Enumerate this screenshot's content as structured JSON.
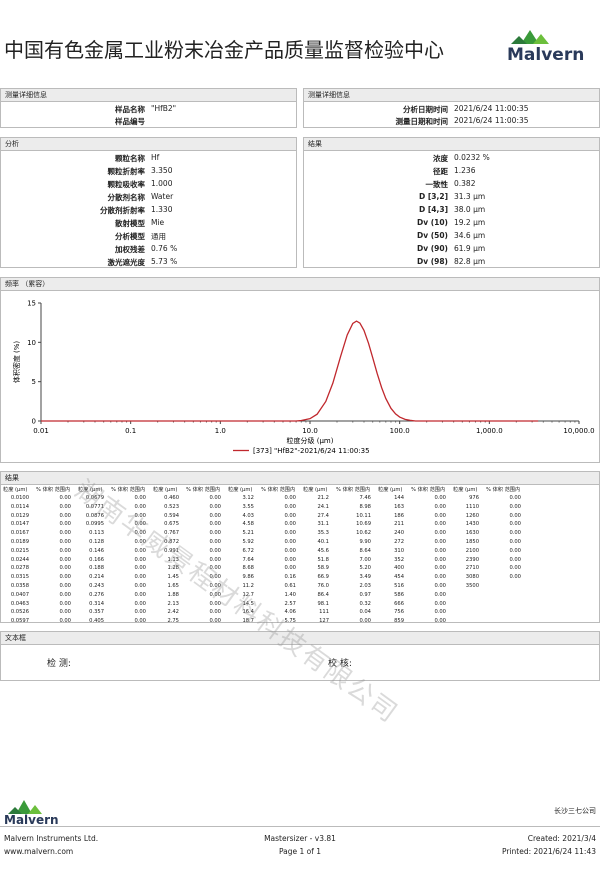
{
  "header": {
    "title": "中国有色金属工业粉末冶金产品质量监督检验中心",
    "logo": "Malvern"
  },
  "measurement": {
    "left_title": "测量详细信息",
    "right_title": "测量详细信息",
    "left": [
      {
        "label": "样品名称",
        "value": "\"HfB2\""
      },
      {
        "label": "样品编号"
      }
    ],
    "right": [
      {
        "label": "分析日期时间",
        "value": "2021/6/24 11:00:35"
      },
      {
        "label": "测量日期和时间",
        "value": "2021/6/24 11:00:35"
      }
    ]
  },
  "analysis": {
    "title": "分析",
    "rows": [
      {
        "label": "颗粒名称",
        "value": "Hf"
      },
      {
        "label": "颗粒折射率",
        "value": "3.350"
      },
      {
        "label": "颗粒吸收率",
        "value": "1.000"
      },
      {
        "label": "分散剂名称",
        "value": "Water"
      },
      {
        "label": "分散剂折射率",
        "value": "1.330"
      },
      {
        "label": "散射模型",
        "value": "Mie"
      },
      {
        "label": "分析模型",
        "value": "通用"
      },
      {
        "label": "加权残差",
        "value": "0.76 %"
      },
      {
        "label": "激光遮光度",
        "value": "5.73 %"
      }
    ]
  },
  "results": {
    "title": "结果",
    "rows": [
      {
        "label": "浓度",
        "value": "0.0232 %"
      },
      {
        "label": "径距",
        "value": "1.236"
      },
      {
        "label": "一致性",
        "value": "0.382"
      },
      {
        "label": "D [3,2]",
        "value": "31.3 μm"
      },
      {
        "label": "D [4,3]",
        "value": "38.0 μm"
      },
      {
        "label": "Dv (10)",
        "value": "19.2 μm"
      },
      {
        "label": "Dv (50)",
        "value": "34.6 μm"
      },
      {
        "label": "Dv (90)",
        "value": "61.9 μm"
      },
      {
        "label": "Dv (98)",
        "value": "82.8 μm"
      }
    ]
  },
  "chart_section": {
    "title": "频率 （累容）"
  },
  "chart_data": {
    "type": "line",
    "x_label": "粒度分级 (μm)",
    "y_label": "体积密度 (%)",
    "log_x": true,
    "xlim": [
      0.01,
      10000
    ],
    "ylim": [
      0,
      15
    ],
    "xticks": [
      {
        "value": 0.01,
        "label": "0.01"
      },
      {
        "value": 0.1,
        "label": "0.1"
      },
      {
        "value": 1,
        "label": "1.0"
      },
      {
        "value": 10,
        "label": "10.0"
      },
      {
        "value": 100,
        "label": "100.0"
      },
      {
        "value": 1000,
        "label": "1,000.0"
      },
      {
        "value": 10000,
        "label": "10,000.0"
      }
    ],
    "yticks": [
      0,
      5,
      10,
      15
    ],
    "x": [
      0.01,
      7,
      8,
      10,
      12,
      15,
      18,
      22,
      26,
      30,
      33,
      36,
      40,
      45,
      50,
      56,
      63,
      70,
      80,
      90,
      100,
      115,
      130,
      150,
      3500
    ],
    "series": [
      {
        "name": "[373] \"HfB2\"-2021/6/24 11:00:35",
        "color": "#c0282d",
        "values": [
          0,
          0,
          0.06,
          0.3,
          0.86,
          2.48,
          4.83,
          8.25,
          10.94,
          12.4,
          12.7,
          12.45,
          11.52,
          9.86,
          8.06,
          6.08,
          4.23,
          2.87,
          1.61,
          0.9,
          0.5,
          0.21,
          0.09,
          0,
          0
        ]
      }
    ]
  },
  "table": {
    "title": "结果",
    "size_header": "粒度 (μm)",
    "vol_header": "% 体积 范围内",
    "groups": [
      [
        [
          "0.0100",
          "0.00"
        ],
        [
          "0.0114",
          "0.00"
        ],
        [
          "0.0129",
          "0.00"
        ],
        [
          "0.0147",
          "0.00"
        ],
        [
          "0.0167",
          "0.00"
        ],
        [
          "0.0189",
          "0.00"
        ],
        [
          "0.0215",
          "0.00"
        ],
        [
          "0.0244",
          "0.00"
        ],
        [
          "0.0278",
          "0.00"
        ],
        [
          "0.0315",
          "0.00"
        ],
        [
          "0.0358",
          "0.00"
        ],
        [
          "0.0407",
          "0.00"
        ],
        [
          "0.0463",
          "0.00"
        ],
        [
          "0.0526",
          "0.00"
        ],
        [
          "0.0597",
          "0.00"
        ]
      ],
      [
        [
          "0.0679",
          "0.00"
        ],
        [
          "0.0771",
          "0.00"
        ],
        [
          "0.0876",
          "0.00"
        ],
        [
          "0.0995",
          "0.00"
        ],
        [
          "0.113",
          "0.00"
        ],
        [
          "0.128",
          "0.00"
        ],
        [
          "0.146",
          "0.00"
        ],
        [
          "0.166",
          "0.00"
        ],
        [
          "0.188",
          "0.00"
        ],
        [
          "0.214",
          "0.00"
        ],
        [
          "0.243",
          "0.00"
        ],
        [
          "0.276",
          "0.00"
        ],
        [
          "0.314",
          "0.00"
        ],
        [
          "0.357",
          "0.00"
        ],
        [
          "0.405",
          "0.00"
        ]
      ],
      [
        [
          "0.460",
          "0.00"
        ],
        [
          "0.523",
          "0.00"
        ],
        [
          "0.594",
          "0.00"
        ],
        [
          "0.675",
          "0.00"
        ],
        [
          "0.767",
          "0.00"
        ],
        [
          "0.872",
          "0.00"
        ],
        [
          "0.991",
          "0.00"
        ],
        [
          "1.13",
          "0.00"
        ],
        [
          "1.28",
          "0.00"
        ],
        [
          "1.45",
          "0.00"
        ],
        [
          "1.65",
          "0.00"
        ],
        [
          "1.88",
          "0.00"
        ],
        [
          "2.13",
          "0.00"
        ],
        [
          "2.42",
          "0.00"
        ],
        [
          "2.75",
          "0.00"
        ]
      ],
      [
        [
          "3.12",
          "0.00"
        ],
        [
          "3.55",
          "0.00"
        ],
        [
          "4.03",
          "0.00"
        ],
        [
          "4.58",
          "0.00"
        ],
        [
          "5.21",
          "0.00"
        ],
        [
          "5.92",
          "0.00"
        ],
        [
          "6.72",
          "0.00"
        ],
        [
          "7.64",
          "0.00"
        ],
        [
          "8.68",
          "0.00"
        ],
        [
          "9.86",
          "0.16"
        ],
        [
          "11.2",
          "0.61"
        ],
        [
          "12.7",
          "1.40"
        ],
        [
          "14.5",
          "2.57"
        ],
        [
          "16.4",
          "4.06"
        ],
        [
          "18.7",
          "5.75"
        ]
      ],
      [
        [
          "21.2",
          "7.46"
        ],
        [
          "24.1",
          "8.98"
        ],
        [
          "27.4",
          "10.11"
        ],
        [
          "31.1",
          "10.69"
        ],
        [
          "35.3",
          "10.62"
        ],
        [
          "40.1",
          "9.90"
        ],
        [
          "45.6",
          "8.64"
        ],
        [
          "51.8",
          "7.00"
        ],
        [
          "58.9",
          "5.20"
        ],
        [
          "66.9",
          "3.49"
        ],
        [
          "76.0",
          "2.03"
        ],
        [
          "86.4",
          "0.97"
        ],
        [
          "98.1",
          "0.32"
        ],
        [
          "111",
          "0.04"
        ],
        [
          "127",
          "0.00"
        ]
      ],
      [
        [
          "144",
          "0.00"
        ],
        [
          "163",
          "0.00"
        ],
        [
          "186",
          "0.00"
        ],
        [
          "211",
          "0.00"
        ],
        [
          "240",
          "0.00"
        ],
        [
          "272",
          "0.00"
        ],
        [
          "310",
          "0.00"
        ],
        [
          "352",
          "0.00"
        ],
        [
          "400",
          "0.00"
        ],
        [
          "454",
          "0.00"
        ],
        [
          "516",
          "0.00"
        ],
        [
          "586",
          "0.00"
        ],
        [
          "666",
          "0.00"
        ],
        [
          "756",
          "0.00"
        ],
        [
          "859",
          "0.00"
        ]
      ],
      [
        [
          "976",
          "0.00"
        ],
        [
          "1110",
          "0.00"
        ],
        [
          "1260",
          "0.00"
        ],
        [
          "1430",
          "0.00"
        ],
        [
          "1630",
          "0.00"
        ],
        [
          "1850",
          "0.00"
        ],
        [
          "2100",
          "0.00"
        ],
        [
          "2390",
          "0.00"
        ],
        [
          "2710",
          "0.00"
        ],
        [
          "3080",
          "0.00"
        ],
        [
          "3500"
        ]
      ]
    ]
  },
  "text_box": {
    "title": "文本框",
    "inspect": "检 测:",
    "check": "校 核:"
  },
  "watermark": "湖南华威景程材料科技有限公司",
  "footer": {
    "company": "长沙三七公司",
    "logo": "Malvern",
    "left": [
      "Malvern Instruments Ltd.",
      "www.malvern.com"
    ],
    "center": [
      "Mastersizer - v3.81",
      "Page 1 of 1"
    ],
    "right": [
      "Created:  2021/3/4",
      "Printed: 2021/6/24 11:43"
    ]
  }
}
